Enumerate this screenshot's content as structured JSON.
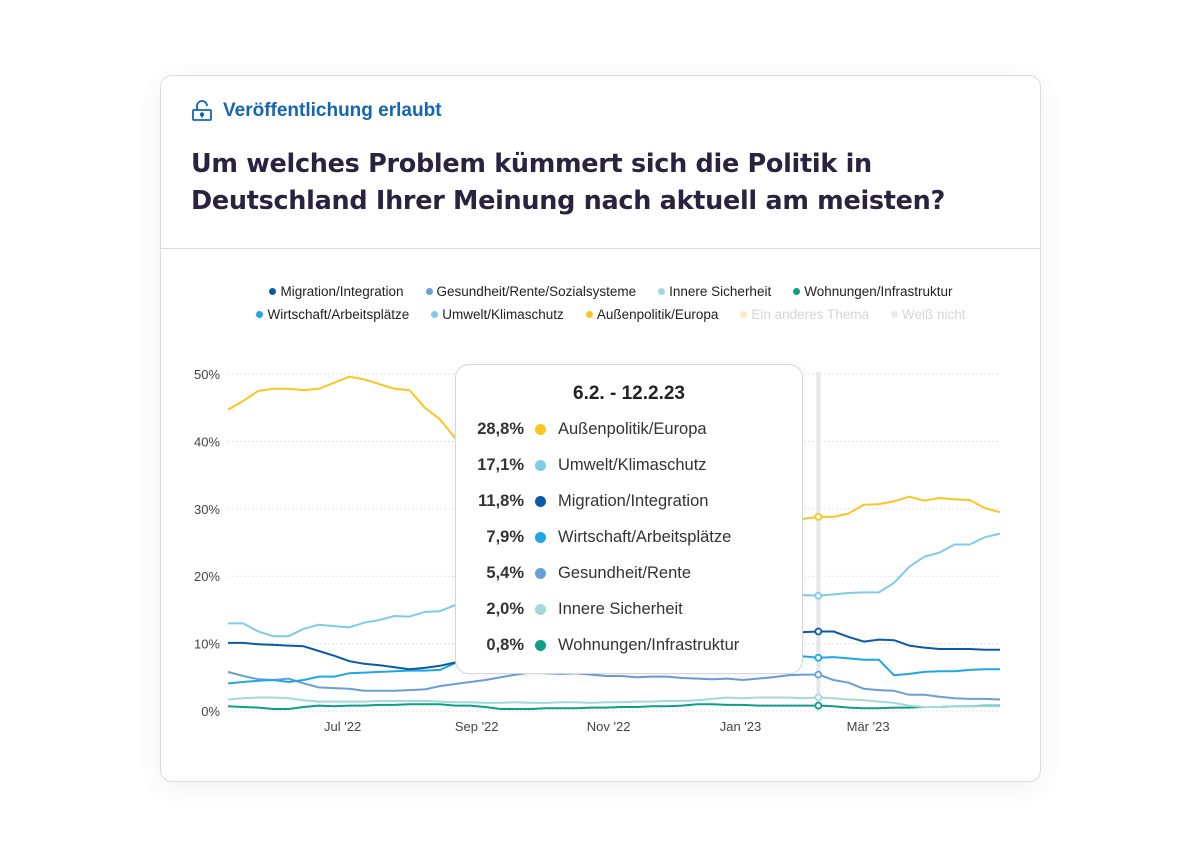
{
  "header": {
    "badge_icon": "unlock-icon",
    "badge_label": "Veröffentlichung erlaubt",
    "title": "Um welches Problem kümmert sich die Politik in Deutschland Ihrer Meinung nach aktuell am meisten?"
  },
  "legend": [
    {
      "label": "Migration/Integration",
      "color": "#0a5aa8",
      "active": true
    },
    {
      "label": "Gesundheit/Rente/Sozialsysteme",
      "color": "#6a9fd6",
      "active": true
    },
    {
      "label": "Innere Sicherheit",
      "color": "#a3d9d6",
      "active": true
    },
    {
      "label": "Wohnungen/Infrastruktur",
      "color": "#0d9e85",
      "active": true
    },
    {
      "label": "Wirtschaft/Arbeitsplätze",
      "color": "#1ea7e4",
      "active": true
    },
    {
      "label": "Umwelt/Klimaschutz",
      "color": "#7fcbe8",
      "active": true
    },
    {
      "label": "Außenpolitik/Europa",
      "color": "#f9c623",
      "active": true
    },
    {
      "label": "Ein anderes Thema",
      "color": "#f9ecc4",
      "active": false
    },
    {
      "label": "Weiß nicht",
      "color": "#ececE6",
      "active": false
    }
  ],
  "tooltip": {
    "title": "6.2. - 12.2.23",
    "rows": [
      {
        "value": "28,8%",
        "label": "Außenpolitik/Europa",
        "color": "#f9c623"
      },
      {
        "value": "17,1%",
        "label": "Umwelt/Klimaschutz",
        "color": "#7fcbe8"
      },
      {
        "value": "11,8%",
        "label": "Migration/Integration",
        "color": "#0a5aa8"
      },
      {
        "value": "7,9%",
        "label": "Wirtschaft/Arbeitsplätze",
        "color": "#1ea7e4"
      },
      {
        "value": "5,4%",
        "label": "Gesundheit/Rente",
        "color": "#6a9fd6"
      },
      {
        "value": "2,0%",
        "label": "Innere Sicherheit",
        "color": "#a3d9d6"
      },
      {
        "value": "0,8%",
        "label": "Wohnungen/Infrastruktur",
        "color": "#0d9e85"
      }
    ]
  },
  "chart_data": {
    "type": "line",
    "ylim": [
      0,
      50
    ],
    "grid": true,
    "legend_placement": "top",
    "y_ticks": [
      {
        "value": 0,
        "label": "0%"
      },
      {
        "value": 10,
        "label": "10%"
      },
      {
        "value": 20,
        "label": "20%"
      },
      {
        "value": 30,
        "label": "30%"
      },
      {
        "value": 40,
        "label": "40%"
      },
      {
        "value": 50,
        "label": "50%"
      }
    ],
    "x_ticks": [
      {
        "date": "2022-07-01",
        "label": "Jul '22"
      },
      {
        "date": "2022-09-01",
        "label": "Sep '22"
      },
      {
        "date": "2022-11-01",
        "label": "Nov '22"
      },
      {
        "date": "2023-01-01",
        "label": "Jan '23"
      },
      {
        "date": "2023-03-01",
        "label": "Mär '23"
      }
    ],
    "highlight_date": "2023-02-06",
    "x": [
      "2022-05-09",
      "2022-05-16",
      "2022-05-23",
      "2022-05-30",
      "2022-06-06",
      "2022-06-13",
      "2022-06-20",
      "2022-06-27",
      "2022-07-04",
      "2022-07-11",
      "2022-07-18",
      "2022-07-25",
      "2022-08-01",
      "2022-08-08",
      "2022-08-15",
      "2022-08-22",
      "2022-08-29",
      "2022-09-05",
      "2022-09-12",
      "2022-09-19",
      "2022-09-26",
      "2022-10-03",
      "2022-10-10",
      "2022-10-17",
      "2022-10-24",
      "2022-10-31",
      "2022-11-07",
      "2022-11-14",
      "2022-11-21",
      "2022-11-28",
      "2022-12-05",
      "2022-12-12",
      "2022-12-19",
      "2022-12-26",
      "2023-01-02",
      "2023-01-09",
      "2023-01-16",
      "2023-01-23",
      "2023-01-30",
      "2023-02-06",
      "2023-02-13",
      "2023-02-20",
      "2023-02-27",
      "2023-03-06",
      "2023-03-13",
      "2023-03-20",
      "2023-03-27",
      "2023-04-03",
      "2023-04-10",
      "2023-04-17",
      "2023-04-24",
      "2023-05-01"
    ],
    "series": [
      {
        "name": "Außenpolitik/Europa",
        "color": "#f9c623",
        "values": [
          44.7,
          46,
          47.5,
          47.8,
          47.8,
          47.6,
          47.8,
          48.7,
          49.6,
          49.2,
          48.5,
          47.8,
          47.6,
          45,
          43.3,
          40.5,
          39,
          37,
          35.5,
          34,
          33,
          32,
          31.5,
          31,
          30.5,
          30,
          29.5,
          29,
          28.5,
          28,
          28,
          27.5,
          27.5,
          27,
          27,
          27.5,
          28,
          28.2,
          28.5,
          28.8,
          28.8,
          29.3,
          30.6,
          30.7,
          31.1,
          31.8,
          31.2,
          31.6,
          31.4,
          31.3,
          30.1,
          29.5
        ]
      },
      {
        "name": "Umwelt/Klimaschutz",
        "color": "#7fcbe8",
        "values": [
          13,
          13,
          11.8,
          11.1,
          11.1,
          12.2,
          12.8,
          12.6,
          12.4,
          13.1,
          13.5,
          14.1,
          14,
          14.7,
          14.8,
          15.7,
          16,
          16.5,
          17,
          17.5,
          18,
          18.5,
          18,
          18.5,
          19,
          19,
          18.5,
          18,
          18,
          17.5,
          17.5,
          17.5,
          17,
          17,
          17.5,
          17.5,
          17.5,
          17.3,
          17.2,
          17.1,
          17.3,
          17.5,
          17.6,
          17.6,
          19,
          21.4,
          22.9,
          23.5,
          24.7,
          24.7,
          25.8,
          26.3
        ]
      },
      {
        "name": "Migration/Integration",
        "color": "#0a5aa8",
        "values": [
          10.1,
          10.1,
          9.9,
          9.8,
          9.7,
          9.6,
          8.9,
          8.2,
          7.4,
          7,
          6.8,
          6.5,
          6.2,
          6.4,
          6.7,
          7.2,
          7.8,
          8.5,
          9,
          9.5,
          10,
          10.3,
          10.5,
          10.8,
          11,
          11.2,
          11,
          11.3,
          11.5,
          11.4,
          11.5,
          11.7,
          11.6,
          11.8,
          11.7,
          11.5,
          11.6,
          11.7,
          11.7,
          11.8,
          11.8,
          11,
          10.3,
          10.6,
          10.5,
          9.7,
          9.4,
          9.2,
          9.2,
          9.2,
          9.1,
          9.1
        ]
      },
      {
        "name": "Wirtschaft/Arbeitsplätze",
        "color": "#1ea7e4",
        "values": [
          4.1,
          4.3,
          4.5,
          4.6,
          4.3,
          4.6,
          5.1,
          5.1,
          5.6,
          5.7,
          5.8,
          5.9,
          6,
          6,
          6.1,
          7.1,
          7.5,
          7.8,
          8,
          8.2,
          8.5,
          8.8,
          9,
          9,
          9.2,
          9,
          8.8,
          8.6,
          8.5,
          8.5,
          8.4,
          8.3,
          8.2,
          8.3,
          8.2,
          8,
          8.1,
          8.2,
          8.1,
          7.9,
          8,
          7.8,
          7.6,
          7.6,
          5.3,
          5.5,
          5.8,
          5.9,
          5.9,
          6.1,
          6.2,
          6.2
        ]
      },
      {
        "name": "Gesundheit/Rente",
        "color": "#6a9fd6",
        "values": [
          5.8,
          5.2,
          4.7,
          4.6,
          4.8,
          4.1,
          3.5,
          3.4,
          3.3,
          3,
          3,
          3,
          3.1,
          3.2,
          3.7,
          4,
          4.3,
          4.6,
          5,
          5.4,
          5.7,
          5.6,
          5.5,
          5.6,
          5.4,
          5.2,
          5.2,
          5,
          5.1,
          5.1,
          4.9,
          4.8,
          4.7,
          4.8,
          4.6,
          4.8,
          5,
          5.3,
          5.4,
          5.4,
          4.6,
          4.2,
          3.3,
          3.1,
          3,
          2.4,
          2.4,
          2.1,
          1.9,
          1.8,
          1.8,
          1.7
        ]
      },
      {
        "name": "Innere Sicherheit",
        "color": "#a3d9d6",
        "values": [
          1.7,
          1.9,
          2,
          2,
          1.9,
          1.6,
          1.4,
          1.4,
          1.4,
          1.4,
          1.5,
          1.5,
          1.5,
          1.5,
          1.4,
          1.3,
          1.3,
          1.2,
          1.2,
          1.3,
          1.2,
          1.2,
          1.3,
          1.3,
          1.2,
          1.3,
          1.3,
          1.4,
          1.4,
          1.5,
          1.5,
          1.6,
          1.8,
          2,
          1.9,
          2,
          2,
          2,
          1.9,
          2,
          1.9,
          1.7,
          1.6,
          1.4,
          1.2,
          0.8,
          0.6,
          0.6,
          0.7,
          0.7,
          0.7,
          0.7
        ]
      },
      {
        "name": "Wohnungen/Infrastruktur",
        "color": "#0d9e85",
        "values": [
          0.7,
          0.6,
          0.5,
          0.3,
          0.3,
          0.6,
          0.8,
          0.7,
          0.8,
          0.8,
          0.9,
          0.9,
          1,
          1,
          1,
          0.8,
          0.8,
          0.6,
          0.3,
          0.3,
          0.3,
          0.4,
          0.4,
          0.4,
          0.5,
          0.5,
          0.6,
          0.6,
          0.7,
          0.7,
          0.8,
          1,
          1,
          0.9,
          0.9,
          0.8,
          0.8,
          0.8,
          0.8,
          0.8,
          0.7,
          0.5,
          0.4,
          0.4,
          0.5,
          0.5,
          0.6,
          0.6,
          0.7,
          0.7,
          0.8,
          0.8
        ]
      }
    ]
  }
}
